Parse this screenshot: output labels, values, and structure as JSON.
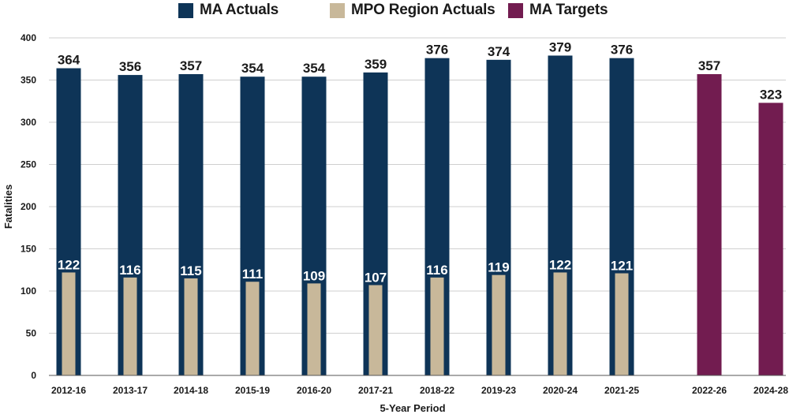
{
  "chart_data": {
    "type": "bar",
    "title": "",
    "xlabel": "5-Year Period",
    "ylabel": "Fatalities",
    "ylim": [
      0,
      400
    ],
    "yticks": [
      0,
      50,
      100,
      150,
      200,
      250,
      300,
      350,
      400
    ],
    "grid": true,
    "legend_position": "top-center",
    "categories": [
      "2012-16",
      "2013-17",
      "2014-18",
      "2015-19",
      "2016-20",
      "2017-21",
      "2018-22",
      "2019-23",
      "2020-24",
      "2021-25",
      "2022-26",
      "2024-28"
    ],
    "series": [
      {
        "name": "MA Actuals",
        "color": "#0e3457",
        "values": [
          364,
          356,
          357,
          354,
          354,
          359,
          376,
          374,
          379,
          376,
          null,
          null
        ]
      },
      {
        "name": "MPO Region Actuals",
        "color": "#c8b89a",
        "values": [
          122,
          116,
          115,
          111,
          109,
          107,
          116,
          119,
          122,
          121,
          null,
          null
        ]
      },
      {
        "name": "MA Targets",
        "color": "#721c50",
        "values": [
          null,
          null,
          null,
          null,
          null,
          null,
          null,
          null,
          null,
          null,
          357,
          323
        ]
      }
    ]
  }
}
